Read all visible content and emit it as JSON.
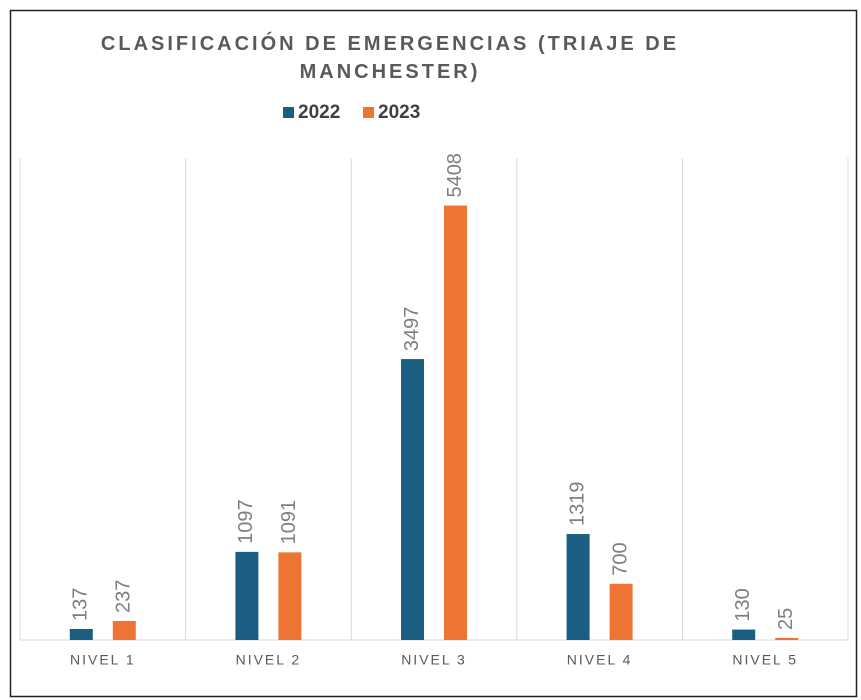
{
  "chart_data": {
    "type": "bar",
    "title": "CLASIFICACIÓN DE EMERGENCIAS (TRIAJE DE MANCHESTER)",
    "categories": [
      "NIVEL 1",
      "NIVEL 2",
      "NIVEL 3",
      "NIVEL 4",
      "NIVEL 5"
    ],
    "series": [
      {
        "name": "2022",
        "color": "#1a5e82",
        "values": [
          137,
          1097,
          3497,
          1319,
          130
        ]
      },
      {
        "name": "2023",
        "color": "#ed7432",
        "values": [
          237,
          1091,
          5408,
          700,
          25
        ]
      }
    ],
    "ylim": [
      0,
      6000
    ],
    "legend": "top",
    "value_labels_rotated": true
  }
}
